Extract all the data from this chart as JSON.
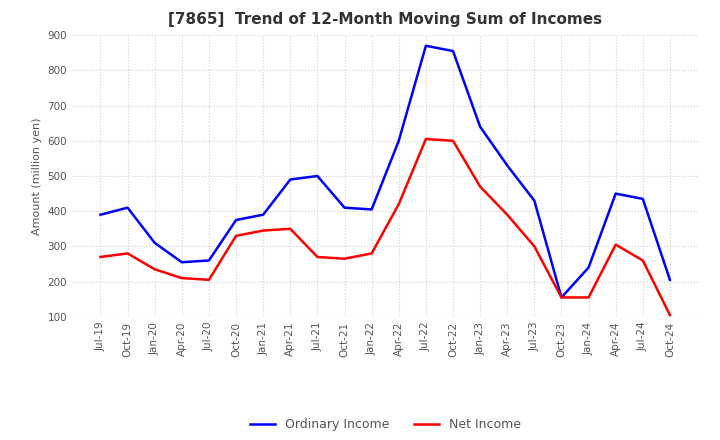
{
  "title": "[7865]  Trend of 12-Month Moving Sum of Incomes",
  "ylabel": "Amount (million yen)",
  "ylim": [
    100,
    900
  ],
  "yticks": [
    100,
    200,
    300,
    400,
    500,
    600,
    700,
    800,
    900
  ],
  "x_labels": [
    "Jul-19",
    "Oct-19",
    "Jan-20",
    "Apr-20",
    "Jul-20",
    "Oct-20",
    "Jan-21",
    "Apr-21",
    "Jul-21",
    "Oct-21",
    "Jan-22",
    "Apr-22",
    "Jul-22",
    "Oct-22",
    "Jan-23",
    "Apr-23",
    "Jul-23",
    "Oct-23",
    "Jan-24",
    "Apr-24",
    "Jul-24",
    "Oct-24"
  ],
  "ordinary_income": [
    390,
    410,
    310,
    255,
    260,
    375,
    390,
    490,
    500,
    410,
    405,
    600,
    870,
    855,
    640,
    530,
    430,
    155,
    240,
    450,
    435,
    205
  ],
  "net_income": [
    270,
    280,
    235,
    210,
    205,
    330,
    345,
    350,
    270,
    265,
    280,
    420,
    605,
    600,
    470,
    390,
    300,
    155,
    155,
    305,
    260,
    105
  ],
  "ordinary_color": "#0000ff",
  "net_color": "#ff0000",
  "background_color": "#ffffff",
  "grid_color": "#d0d0d0",
  "title_color": "#333333",
  "title_fontsize": 11,
  "axis_label_fontsize": 8,
  "tick_label_fontsize": 7.5,
  "legend_labels": [
    "Ordinary Income",
    "Net Income"
  ],
  "legend_fontsize": 9,
  "linewidth": 1.8
}
